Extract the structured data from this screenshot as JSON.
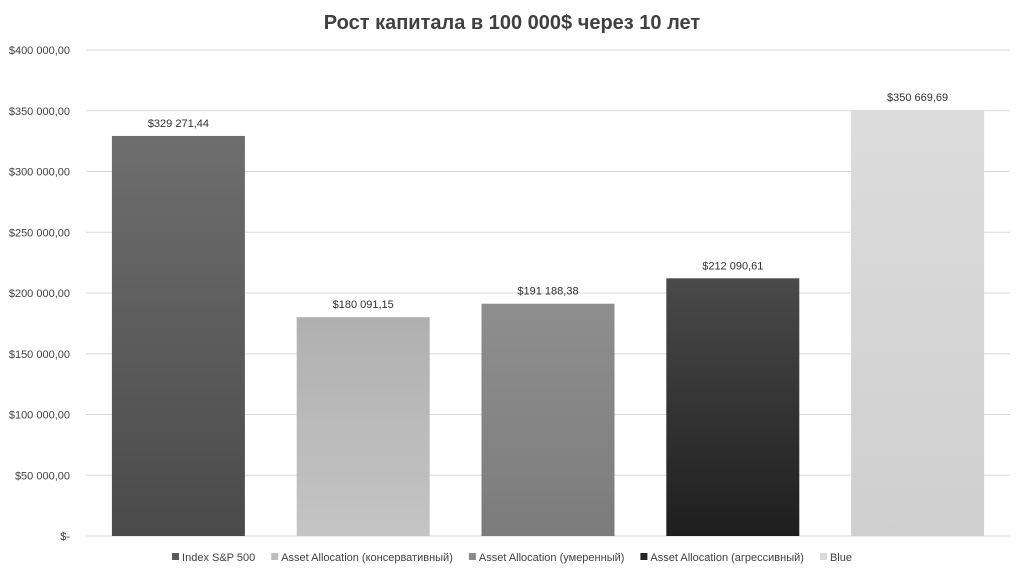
{
  "chart_data": {
    "type": "bar",
    "title": "Рост капитала в 100 000$ через 10 лет",
    "xlabel": "",
    "ylabel": "",
    "ylim": [
      0,
      400000
    ],
    "yticks": [
      {
        "value": 0,
        "label": "$-"
      },
      {
        "value": 50000,
        "label": "$50 000,00"
      },
      {
        "value": 100000,
        "label": "$100 000,00"
      },
      {
        "value": 150000,
        "label": "$150 000,00"
      },
      {
        "value": 200000,
        "label": "$200 000,00"
      },
      {
        "value": 250000,
        "label": "$250 000,00"
      },
      {
        "value": 300000,
        "label": "$300 000,00"
      },
      {
        "value": 350000,
        "label": "$350 000,00"
      },
      {
        "value": 400000,
        "label": "$400 000,00"
      }
    ],
    "grid": true,
    "legend_position": "bottom",
    "series": [
      {
        "name": "Index S&P 500",
        "value": 329271.44,
        "label": "$329 271,44",
        "color_top": "#6e6e6e",
        "color_bottom": "#4a4a4a",
        "legend_color": "#5a5a5a"
      },
      {
        "name": "Asset Allocation (консервативный)",
        "value": 180091.15,
        "label": "$180 091,15",
        "color_top": "#b0b0b0",
        "color_bottom": "#c4c4c4",
        "legend_color": "#bdbdbd"
      },
      {
        "name": "Asset Allocation (умеренный)",
        "value": 191188.38,
        "label": "$191 188,38",
        "color_top": "#8e8e8e",
        "color_bottom": "#7c7c7c",
        "legend_color": "#8a8a8a"
      },
      {
        "name": "Asset Allocation (агрессивный)",
        "value": 212090.61,
        "label": "$212 090,61",
        "color_top": "#4a4a4a",
        "color_bottom": "#1e1e1e",
        "legend_color": "#262626"
      },
      {
        "name": "Blue",
        "value": 350669.69,
        "label": "$350 669,69",
        "color_top": "#dcdcdc",
        "color_bottom": "#cfcfcf",
        "legend_color": "#d9d9d9"
      }
    ]
  }
}
